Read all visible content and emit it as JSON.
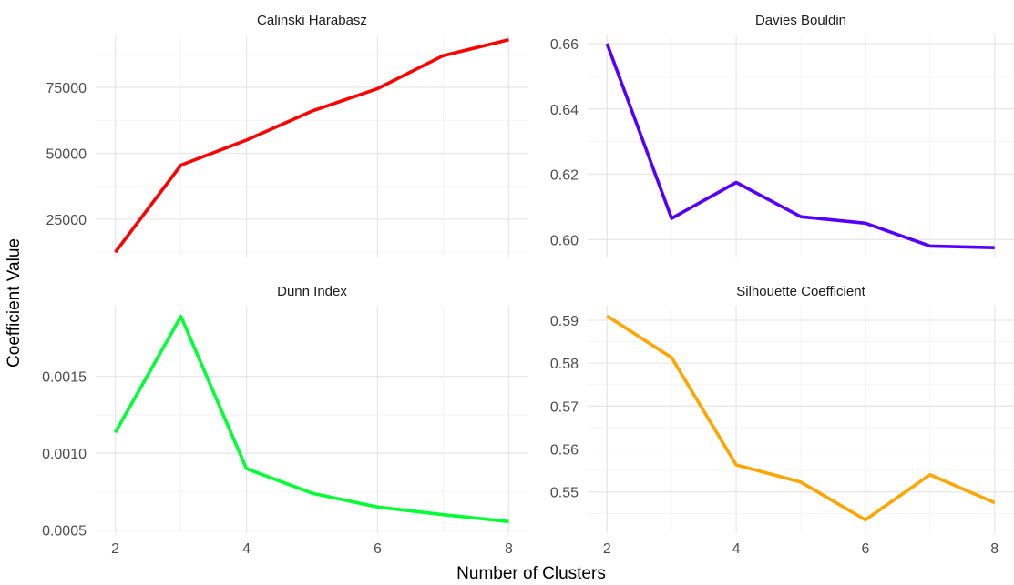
{
  "xlabel": "Number of Clusters",
  "ylabel": "Coefficient Value",
  "chart_data": [
    {
      "type": "line",
      "title": "Calinski Harabasz",
      "color": "#ff0000",
      "x": [
        2,
        3,
        4,
        5,
        6,
        7,
        8
      ],
      "values": [
        12500,
        45500,
        55000,
        66000,
        74500,
        87000,
        93000
      ],
      "ylim": [
        10500,
        95000
      ],
      "yticks": [
        25000,
        50000,
        75000
      ],
      "ytick_labels": [
        "25000",
        "50000",
        "75000"
      ],
      "xlim": [
        1.7,
        8.3
      ],
      "xticks": [
        2,
        4,
        6,
        8
      ],
      "xtick_labels": [
        "2",
        "4",
        "6",
        "8"
      ],
      "grid": true
    },
    {
      "type": "line",
      "title": "Davies Bouldin",
      "color": "#5500ff",
      "x": [
        2,
        3,
        4,
        5,
        6,
        7,
        8
      ],
      "values": [
        0.66,
        0.6065,
        0.6175,
        0.607,
        0.605,
        0.598,
        0.5975
      ],
      "ylim": [
        0.5945,
        0.6628
      ],
      "yticks": [
        0.6,
        0.62,
        0.64,
        0.66
      ],
      "ytick_labels": [
        "0.60",
        "0.62",
        "0.64",
        "0.66"
      ],
      "xlim": [
        1.7,
        8.3
      ],
      "xticks": [
        2,
        4,
        6,
        8
      ],
      "xtick_labels": [
        "2",
        "4",
        "6",
        "8"
      ],
      "grid": true
    },
    {
      "type": "line",
      "title": "Dunn Index",
      "color": "#00ff33",
      "x": [
        2,
        3,
        4,
        5,
        6,
        7,
        8
      ],
      "values": [
        0.001135,
        0.00189,
        0.0009,
        0.00074,
        0.00065,
        0.0006,
        0.000555
      ],
      "ylim": [
        0.00048,
        0.00196
      ],
      "yticks": [
        0.0005,
        0.001,
        0.0015
      ],
      "ytick_labels": [
        "0.0005",
        "0.0010",
        "0.0015"
      ],
      "xlim": [
        1.7,
        8.3
      ],
      "xticks": [
        2,
        4,
        6,
        8
      ],
      "xtick_labels": [
        "2",
        "4",
        "6",
        "8"
      ],
      "grid": true
    },
    {
      "type": "line",
      "title": "Silhouette Coefficient",
      "color": "#ffa500",
      "x": [
        2,
        3,
        4,
        5,
        6,
        7,
        8
      ],
      "values": [
        0.591,
        0.5813,
        0.5563,
        0.5523,
        0.5435,
        0.554,
        0.5475
      ],
      "ylim": [
        0.5404,
        0.5934
      ],
      "yticks": [
        0.55,
        0.56,
        0.57,
        0.58,
        0.59
      ],
      "ytick_labels": [
        "0.55",
        "0.56",
        "0.57",
        "0.58",
        "0.59"
      ],
      "xlim": [
        1.7,
        8.3
      ],
      "xticks": [
        2,
        4,
        6,
        8
      ],
      "xtick_labels": [
        "2",
        "4",
        "6",
        "8"
      ],
      "grid": true
    }
  ]
}
